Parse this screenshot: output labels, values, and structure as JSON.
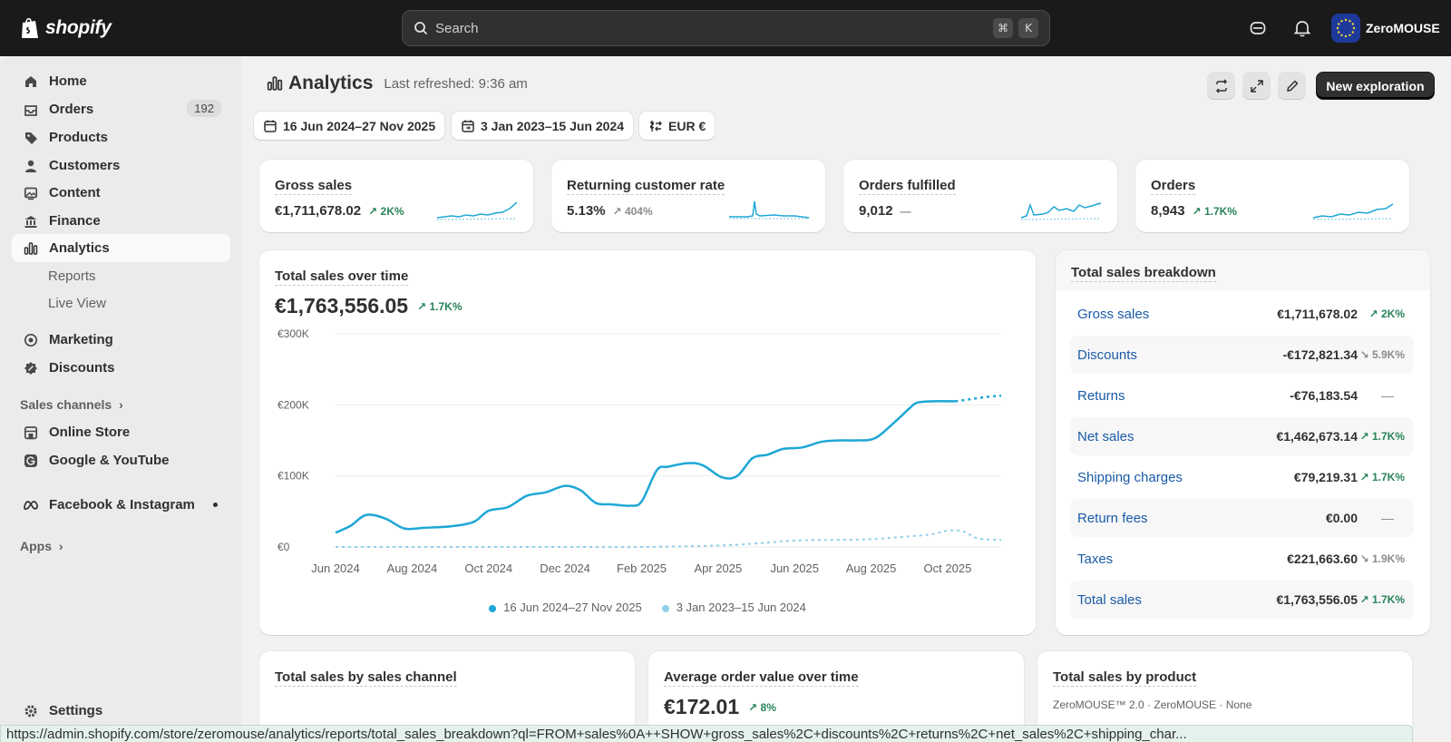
{
  "app": {
    "logo_text": "shopify",
    "store_name": "ZeroMOUSE"
  },
  "search": {
    "placeholder": "Search",
    "shortcut_cmd": "⌘",
    "shortcut_key": "K"
  },
  "sidebar": {
    "items": [
      {
        "label": "Home",
        "icon": "home-icon"
      },
      {
        "label": "Orders",
        "icon": "orders-icon",
        "badge": "192"
      },
      {
        "label": "Products",
        "icon": "tag-icon"
      },
      {
        "label": "Customers",
        "icon": "person-icon"
      },
      {
        "label": "Content",
        "icon": "image-icon"
      },
      {
        "label": "Finance",
        "icon": "bank-icon"
      },
      {
        "label": "Analytics",
        "icon": "bar-chart-icon",
        "active": true
      }
    ],
    "analytics_sub": [
      "Reports",
      "Live View"
    ],
    "items2": [
      {
        "label": "Marketing",
        "icon": "target-icon"
      },
      {
        "label": "Discounts",
        "icon": "discount-icon"
      }
    ],
    "sales_channels_label": "Sales channels",
    "channels": [
      {
        "label": "Online Store",
        "icon": "store-icon"
      },
      {
        "label": "Google & YouTube",
        "icon": "google-icon"
      },
      {
        "label": "Facebook & Instagram",
        "icon": "meta-icon"
      }
    ],
    "apps_label": "Apps",
    "settings_label": "Settings"
  },
  "header": {
    "title": "Analytics",
    "refreshed": "Last refreshed: 9:36 am",
    "new_exploration": "New exploration"
  },
  "filters": {
    "date_range": "16 Jun 2024–27 Nov 2025",
    "compare_range": "3 Jan 2023–15 Jun 2024",
    "currency": "EUR €"
  },
  "metrics": [
    {
      "title": "Gross sales",
      "value": "€1,711,678.02",
      "delta": "2K%",
      "trend": "up"
    },
    {
      "title": "Returning customer rate",
      "value": "5.13%",
      "delta": "404%",
      "trend": "up-neutral"
    },
    {
      "title": "Orders fulfilled",
      "value": "9,012",
      "delta": "—",
      "trend": "none"
    },
    {
      "title": "Orders",
      "value": "8,943",
      "delta": "1.7K%",
      "trend": "up"
    }
  ],
  "total_sales_chart": {
    "title": "Total sales over time",
    "value": "€1,763,556.05",
    "delta": "1.7K%",
    "legend": [
      "16 Jun 2024–27 Nov 2025",
      "3 Jan 2023–15 Jun 2024"
    ]
  },
  "chart_data": {
    "type": "line",
    "ylim": [
      0,
      300000
    ],
    "y_ticks": [
      0,
      100000,
      200000,
      300000
    ],
    "y_tick_labels": [
      "€0",
      "€100K",
      "€200K",
      "€300K"
    ],
    "x_tick_labels": [
      "Jun 2024",
      "Aug 2024",
      "Oct 2024",
      "Dec 2024",
      "Feb 2025",
      "Apr 2025",
      "Jun 2025",
      "Aug 2025",
      "Oct 2025"
    ],
    "x_month_index": [
      0,
      2,
      4,
      6,
      8,
      10,
      12,
      14,
      16
    ],
    "x_max": 17.4,
    "colors": {
      "current": "#1ea7d6",
      "previous": "#8fd0ea"
    },
    "series": [
      {
        "x": [
          0,
          0.4,
          0.8,
          1.3,
          1.8,
          2.3,
          3.0,
          3.6,
          4.0,
          4.5,
          5.0,
          5.5,
          6.0,
          6.4,
          6.8,
          7.2,
          7.7,
          8.0,
          8.4,
          8.7,
          9.2,
          9.6,
          10.1,
          10.5,
          10.9,
          11.3,
          11.7,
          12.2,
          12.7,
          13.2,
          13.6,
          14.1,
          14.6,
          15.0,
          15.2,
          15.6,
          16.2
        ],
        "y": [
          20000,
          30000,
          45000,
          40000,
          26000,
          27000,
          29000,
          35000,
          51000,
          56000,
          72000,
          77000,
          86000,
          80000,
          62000,
          60000,
          58000,
          64000,
          108000,
          113000,
          118000,
          115000,
          98000,
          100000,
          125000,
          130000,
          138000,
          140000,
          148000,
          150000,
          150000,
          153000,
          175000,
          195000,
          203000,
          205000,
          205000
        ]
      },
      {
        "x": [
          16.2,
          16.6,
          17.0,
          17.4
        ],
        "y": [
          205000,
          208000,
          211000,
          213000
        ]
      },
      {
        "x": [
          0,
          2,
          4,
          6,
          8,
          10,
          11,
          12,
          13,
          14,
          15,
          15.6,
          16.0,
          16.4,
          16.8,
          17.4
        ],
        "y": [
          0,
          0,
          0,
          0,
          0,
          2000,
          5000,
          9000,
          10000,
          11000,
          15000,
          18000,
          23000,
          22000,
          12000,
          10000
        ]
      }
    ]
  },
  "breakdown": {
    "title": "Total sales breakdown",
    "rows": [
      {
        "label": "Gross sales",
        "value": "€1,711,678.02",
        "delta": "2K%",
        "kind": "up"
      },
      {
        "label": "Discounts",
        "value": "-€172,821.34",
        "delta": "5.9K%",
        "kind": "neutral"
      },
      {
        "label": "Returns",
        "value": "-€76,183.54",
        "delta": "—",
        "kind": "dash"
      },
      {
        "label": "Net sales",
        "value": "€1,462,673.14",
        "delta": "1.7K%",
        "kind": "up"
      },
      {
        "label": "Shipping charges",
        "value": "€79,219.31",
        "delta": "1.7K%",
        "kind": "up"
      },
      {
        "label": "Return fees",
        "value": "€0.00",
        "delta": "—",
        "kind": "dash"
      },
      {
        "label": "Taxes",
        "value": "€221,663.60",
        "delta": "1.9K%",
        "kind": "neutral"
      },
      {
        "label": "Total sales",
        "value": "€1,763,556.05",
        "delta": "1.7K%",
        "kind": "up"
      }
    ]
  },
  "bottom_cards": {
    "channel_title": "Total sales by sales channel",
    "aov_title": "Average order value over time",
    "aov_value": "€172.01",
    "aov_delta": "8%",
    "product_title": "Total sales by product",
    "product_first": "ZeroMOUSE™ 2.0 · ZeroMOUSE · None"
  },
  "status_url": "https://admin.shopify.com/store/zeromouse/analytics/reports/total_sales_breakdown?ql=FROM+sales%0A++SHOW+gross_sales%2C+discounts%2C+returns%2C+net_sales%2C+shipping_char..."
}
